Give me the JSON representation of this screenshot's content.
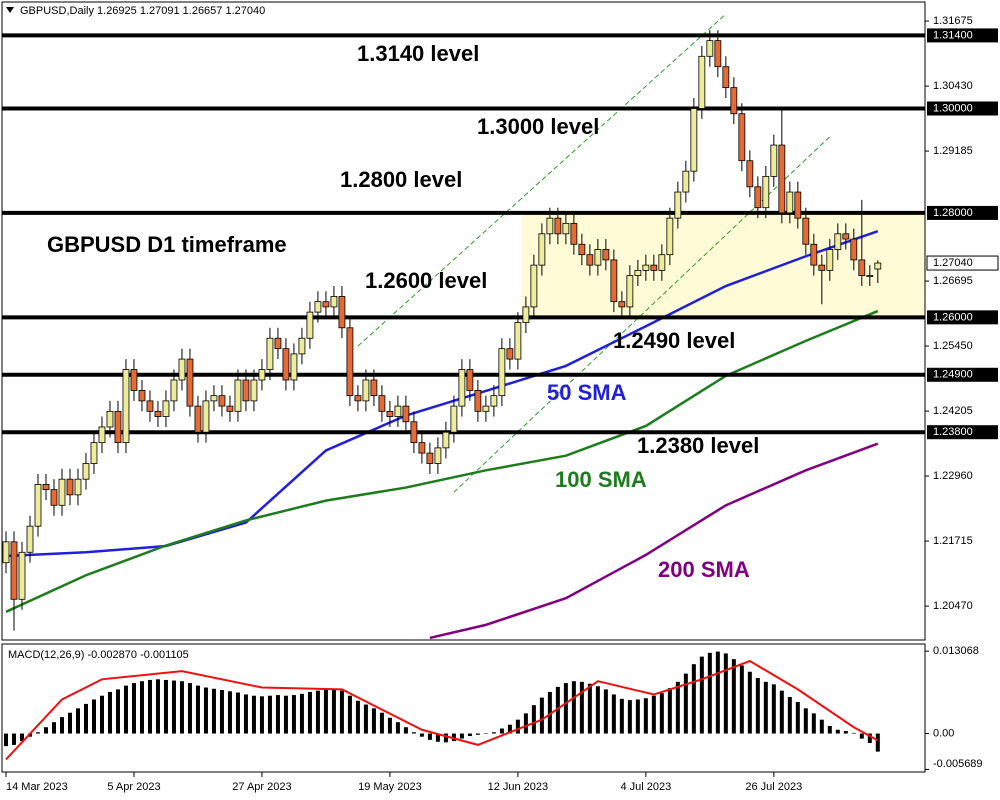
{
  "chart_data": {
    "type": "candlestick",
    "header": "GBPUSD,Daily  1.26925 1.27091 1.26657 1.27040",
    "title": "GBPUSD D1 timeframe",
    "up_color": "#ecec9a",
    "down_color": "#e46a36",
    "xlim": [
      -0.5,
      114.9
    ],
    "xticks": [
      {
        "value": 0,
        "label": "14 Mar 2023"
      },
      {
        "value": 16,
        "label": "5 Apr 2023"
      },
      {
        "value": 32,
        "label": "27 Apr 2023"
      },
      {
        "value": 48,
        "label": "19 May 2023"
      },
      {
        "value": 64,
        "label": "12 Jun 2023"
      },
      {
        "value": 80,
        "label": "4 Jul 2023"
      },
      {
        "value": 96,
        "label": "26 Jul 2023"
      }
    ],
    "ylim": [
      1.1982,
      1.3204
    ],
    "yticks": [
      1.31675,
      {
        "value": 1.3043,
        "label": "1.30430"
      },
      1.29185,
      1.26695,
      {
        "value": 1.2545,
        "label": "1.25450"
      },
      1.24205,
      {
        "value": 1.2296,
        "label": "1.22960"
      },
      1.21715,
      {
        "value": 1.2047,
        "label": "1.20470"
      }
    ],
    "open": [
      1.213,
      1.217,
      1.206,
      1.215,
      1.22,
      1.228,
      1.227,
      1.224,
      1.229,
      1.226,
      1.229,
      1.232,
      1.236,
      1.239,
      1.242,
      1.236,
      1.25,
      1.246,
      1.244,
      1.242,
      1.241,
      1.244,
      1.248,
      1.252,
      1.243,
      1.238,
      1.244,
      1.245,
      1.243,
      1.242,
      1.248,
      1.244,
      1.248,
      1.25,
      1.256,
      1.254,
      1.248,
      1.253,
      1.256,
      1.261,
      1.263,
      1.262,
      1.264,
      1.258,
      1.245,
      1.244,
      1.248,
      1.245,
      1.242,
      1.241,
      1.243,
      1.24,
      1.236,
      1.234,
      1.232,
      1.235,
      1.238,
      1.243,
      1.25,
      1.246,
      1.242,
      1.243,
      1.245,
      1.254,
      1.252,
      1.259,
      1.262,
      1.27,
      1.276,
      1.279,
      1.276,
      1.278,
      1.274,
      1.272,
      1.27,
      1.273,
      1.271,
      1.263,
      1.262,
      1.268,
      1.269,
      1.27,
      1.269,
      1.272,
      1.279,
      1.284,
      1.288,
      1.3,
      1.31,
      1.313,
      1.308,
      1.304,
      1.299,
      1.29,
      1.285,
      1.281,
      1.287,
      1.293,
      1.28,
      1.284,
      1.279,
      1.274,
      1.27,
      1.269,
      1.273,
      1.276,
      1.275,
      1.271,
      1.268,
      1.26925
    ],
    "high": [
      1.219,
      1.219,
      1.217,
      1.222,
      1.23,
      1.23,
      1.229,
      1.231,
      1.231,
      1.231,
      1.234,
      1.238,
      1.241,
      1.244,
      1.244,
      1.252,
      1.252,
      1.248,
      1.246,
      1.244,
      1.246,
      1.25,
      1.254,
      1.254,
      1.245,
      1.246,
      1.247,
      1.247,
      1.245,
      1.25,
      1.25,
      1.25,
      1.252,
      1.258,
      1.258,
      1.256,
      1.255,
      1.258,
      1.263,
      1.265,
      1.265,
      1.266,
      1.266,
      1.26,
      1.247,
      1.25,
      1.25,
      1.247,
      1.244,
      1.245,
      1.245,
      1.242,
      1.238,
      1.236,
      1.237,
      1.24,
      1.245,
      1.252,
      1.252,
      1.248,
      1.245,
      1.247,
      1.256,
      1.256,
      1.261,
      1.264,
      1.272,
      1.278,
      1.281,
      1.281,
      1.28,
      1.28,
      1.276,
      1.274,
      1.275,
      1.275,
      1.273,
      1.265,
      1.27,
      1.271,
      1.272,
      1.272,
      1.274,
      1.281,
      1.286,
      1.29,
      1.302,
      1.312,
      1.315,
      1.315,
      1.31,
      1.306,
      1.301,
      1.292,
      1.287,
      1.289,
      1.295,
      1.3,
      1.286,
      1.286,
      1.281,
      1.276,
      1.272,
      1.275,
      1.278,
      1.278,
      1.277,
      1.2825,
      1.27,
      1.27091
    ],
    "low": [
      1.211,
      1.2,
      1.204,
      1.213,
      1.218,
      1.225,
      1.222,
      1.222,
      1.224,
      1.224,
      1.227,
      1.23,
      1.234,
      1.237,
      1.234,
      1.234,
      1.244,
      1.242,
      1.24,
      1.239,
      1.239,
      1.242,
      1.246,
      1.241,
      1.236,
      1.236,
      1.242,
      1.241,
      1.24,
      1.24,
      1.242,
      1.242,
      1.246,
      1.248,
      1.252,
      1.246,
      1.246,
      1.251,
      1.254,
      1.259,
      1.26,
      1.26,
      1.256,
      1.243,
      1.242,
      1.242,
      1.243,
      1.24,
      1.239,
      1.239,
      1.238,
      1.234,
      1.232,
      1.23,
      1.23,
      1.233,
      1.236,
      1.241,
      1.244,
      1.24,
      1.24,
      1.241,
      1.243,
      1.25,
      1.25,
      1.257,
      1.26,
      1.268,
      1.274,
      1.274,
      1.274,
      1.272,
      1.27,
      1.268,
      1.268,
      1.269,
      1.261,
      1.26,
      1.26,
      1.266,
      1.267,
      1.267,
      1.267,
      1.27,
      1.277,
      1.282,
      1.286,
      1.298,
      1.308,
      1.306,
      1.302,
      1.297,
      1.288,
      1.283,
      1.279,
      1.279,
      1.285,
      1.278,
      1.278,
      1.277,
      1.272,
      1.268,
      1.2625,
      1.267,
      1.271,
      1.273,
      1.269,
      1.266,
      1.266,
      1.26657
    ],
    "close": [
      1.217,
      1.206,
      1.215,
      1.22,
      1.228,
      1.227,
      1.224,
      1.229,
      1.226,
      1.229,
      1.232,
      1.236,
      1.239,
      1.242,
      1.236,
      1.25,
      1.246,
      1.244,
      1.242,
      1.241,
      1.244,
      1.248,
      1.252,
      1.243,
      1.238,
      1.244,
      1.245,
      1.243,
      1.242,
      1.248,
      1.244,
      1.248,
      1.25,
      1.256,
      1.254,
      1.248,
      1.253,
      1.256,
      1.261,
      1.263,
      1.262,
      1.264,
      1.258,
      1.245,
      1.244,
      1.248,
      1.245,
      1.242,
      1.241,
      1.243,
      1.24,
      1.236,
      1.234,
      1.232,
      1.235,
      1.238,
      1.243,
      1.25,
      1.246,
      1.242,
      1.243,
      1.245,
      1.254,
      1.252,
      1.259,
      1.262,
      1.27,
      1.276,
      1.279,
      1.276,
      1.278,
      1.274,
      1.272,
      1.27,
      1.273,
      1.271,
      1.263,
      1.262,
      1.268,
      1.269,
      1.27,
      1.269,
      1.272,
      1.279,
      1.284,
      1.288,
      1.3,
      1.31,
      1.313,
      1.308,
      1.304,
      1.299,
      1.29,
      1.285,
      1.281,
      1.287,
      1.293,
      1.28,
      1.284,
      1.279,
      1.274,
      1.27,
      1.269,
      1.273,
      1.276,
      1.275,
      1.271,
      1.268,
      1.268,
      1.2704
    ],
    "levels": [
      {
        "value": 1.314,
        "label": "1.31400",
        "text": "1.3140 level"
      },
      {
        "value": 1.3,
        "label": "1.30000",
        "text": "1.3000 level"
      },
      {
        "value": 1.28,
        "label": "1.28000",
        "text": "1.2800 level"
      },
      {
        "value": 1.26,
        "label": "1.26000",
        "text": "1.2600 level"
      },
      {
        "value": 1.249,
        "label": "1.24900",
        "text": "1.2490 level"
      },
      {
        "value": 1.238,
        "label": "1.23800",
        "text": "1.2380 level"
      }
    ],
    "last_price": {
      "value": 1.2704,
      "label": "1.27040"
    },
    "zone": {
      "low": 1.26,
      "high": 1.28,
      "start": 64.5,
      "color": "#fffbd6"
    },
    "overlays": [
      {
        "name": "50 SMA",
        "color": "#1f1fdc",
        "x": [
          0,
          10,
          20,
          30,
          40,
          50,
          60,
          70,
          80,
          90,
          100,
          109
        ],
        "values": [
          1.2143,
          1.215,
          1.2162,
          1.2207,
          1.2345,
          1.2412,
          1.2459,
          1.2507,
          1.2583,
          1.266,
          1.2717,
          1.2765
        ]
      },
      {
        "name": "100 SMA",
        "color": "#1e7b1e",
        "x": [
          0,
          10,
          20,
          30,
          40,
          50,
          60,
          70,
          80,
          90,
          100,
          109
        ],
        "values": [
          1.2036,
          1.2106,
          1.2163,
          1.2211,
          1.2249,
          1.2274,
          1.2307,
          1.2335,
          1.2392,
          1.2488,
          1.2555,
          1.2612
        ]
      },
      {
        "name": "200 SMA",
        "color": "#800080",
        "x": [
          53,
          60,
          70,
          80,
          90,
          100,
          109
        ],
        "values": [
          1.1986,
          1.2011,
          1.2062,
          1.2145,
          1.224,
          1.2307,
          1.2358
        ]
      }
    ],
    "channel_color": "#2ca02c",
    "channels": [
      {
        "x": [
          44,
          90
        ],
        "values": [
          1.2545,
          1.3181
        ]
      },
      {
        "x": [
          56,
          103
        ],
        "values": [
          1.2265,
          1.2946
        ]
      }
    ],
    "macd": {
      "label": "MACD(12,26,9) -0.002870 -0.001105",
      "ylim": [
        -0.0061,
        0.0142
      ],
      "yticks": [
        0.013068,
        {
          "value": 0,
          "label": "0.00"
        },
        -0.005689
      ],
      "histogram": [
        -0.002,
        -0.0018,
        -0.0012,
        -0.0005,
        0.0002,
        0.001,
        0.0018,
        0.0026,
        0.0033,
        0.004,
        0.0047,
        0.0054,
        0.006,
        0.0066,
        0.007,
        0.0076,
        0.008,
        0.0083,
        0.0085,
        0.0086,
        0.0085,
        0.0084,
        0.0083,
        0.008,
        0.0076,
        0.0073,
        0.0071,
        0.0069,
        0.0067,
        0.0065,
        0.0062,
        0.006,
        0.0059,
        0.006,
        0.0061,
        0.006,
        0.0061,
        0.0063,
        0.0066,
        0.0068,
        0.007,
        0.0071,
        0.0068,
        0.006,
        0.0052,
        0.0046,
        0.004,
        0.0033,
        0.0025,
        0.0018,
        0.001,
        0.0002,
        -0.0005,
        -0.001,
        -0.0013,
        -0.0014,
        -0.0012,
        -0.0008,
        -0.0004,
        -0.0002,
        0.0,
        0.0002,
        0.0008,
        0.0014,
        0.0022,
        0.0032,
        0.0045,
        0.0057,
        0.0066,
        0.0074,
        0.008,
        0.0083,
        0.0082,
        0.0079,
        0.0075,
        0.007,
        0.0062,
        0.0055,
        0.0053,
        0.0054,
        0.0056,
        0.006,
        0.0064,
        0.0072,
        0.0082,
        0.0095,
        0.011,
        0.0122,
        0.0128,
        0.013,
        0.0127,
        0.0118,
        0.0108,
        0.0098,
        0.0088,
        0.0082,
        0.0078,
        0.0068,
        0.0058,
        0.005,
        0.004,
        0.0032,
        0.0022,
        0.0012,
        0.0006,
        0.0004,
        0.0001,
        -0.0008,
        -0.0015,
        -0.00287
      ],
      "signal": {
        "color": "#ee1111",
        "x": [
          0,
          7,
          12,
          22,
          32,
          42,
          52,
          59,
          67,
          74,
          81,
          87,
          93,
          99,
          106,
          109
        ],
        "values": [
          -0.0041,
          0.0054,
          0.0086,
          0.0099,
          0.0073,
          0.007,
          0.0006,
          -0.0018,
          0.0022,
          0.0083,
          0.0062,
          0.0086,
          0.0115,
          0.007,
          0.001,
          -0.0011
        ]
      }
    }
  }
}
